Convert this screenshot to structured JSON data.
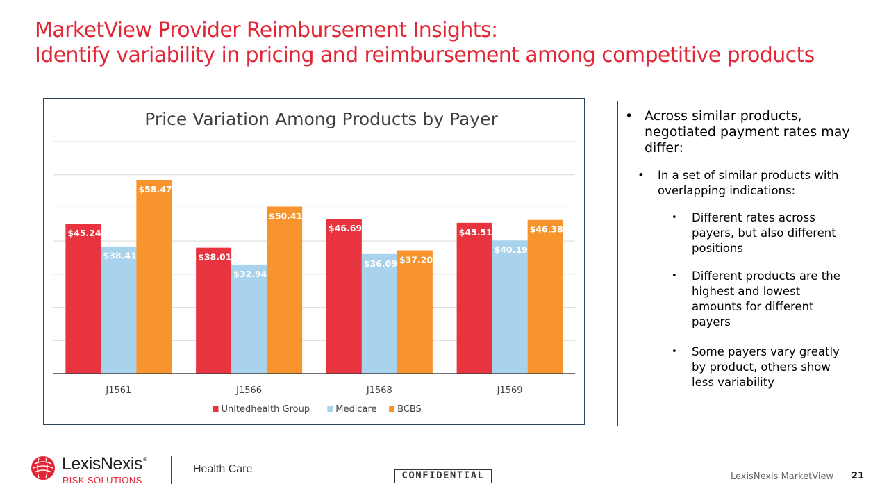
{
  "slide": {
    "title_line1": "MarketView Provider Reimbursement Insights:",
    "title_line2": "Identify variability in pricing and reimbursement among competitive products"
  },
  "chart_data": {
    "type": "bar",
    "title": "Price Variation Among Products by Payer",
    "categories": [
      "J1561",
      "J1566",
      "J1568",
      "J1569"
    ],
    "series": [
      {
        "name": "Unitedhealth Group",
        "color": "#e8343f",
        "values": [
          45.24,
          38.01,
          46.69,
          45.51
        ],
        "labels": [
          "$45.24",
          "$38.01",
          "$46.69",
          "$45.51"
        ]
      },
      {
        "name": "Medicare",
        "color": "#a9d3ec",
        "values": [
          38.41,
          32.94,
          36.09,
          40.19
        ],
        "labels": [
          "$38.41",
          "$32.94",
          "$36.09",
          "$40.19"
        ]
      },
      {
        "name": "BCBS",
        "color": "#f7942d",
        "values": [
          58.47,
          50.41,
          37.2,
          46.38
        ],
        "labels": [
          "$58.47",
          "$50.41",
          "$37.20",
          "$46.38"
        ]
      }
    ],
    "ylim": [
      0,
      70
    ],
    "grid": true,
    "legend": "bottom"
  },
  "bullets": {
    "main": "Across similar products, negotiated payment rates may differ:",
    "sub": "In a set of similar products with overlapping indications:",
    "subsub": [
      "Different rates across payers, but also different positions",
      "Different products are the highest and lowest amounts for different payers",
      "Some payers vary greatly by product, others show less variability"
    ]
  },
  "footer": {
    "logo_name": "LexisNexis",
    "logo_sub": "RISK SOLUTIONS",
    "division": "Health Care",
    "confidential": "CONFIDENTIAL",
    "brand": "LexisNexis MarketView",
    "page": "21"
  }
}
